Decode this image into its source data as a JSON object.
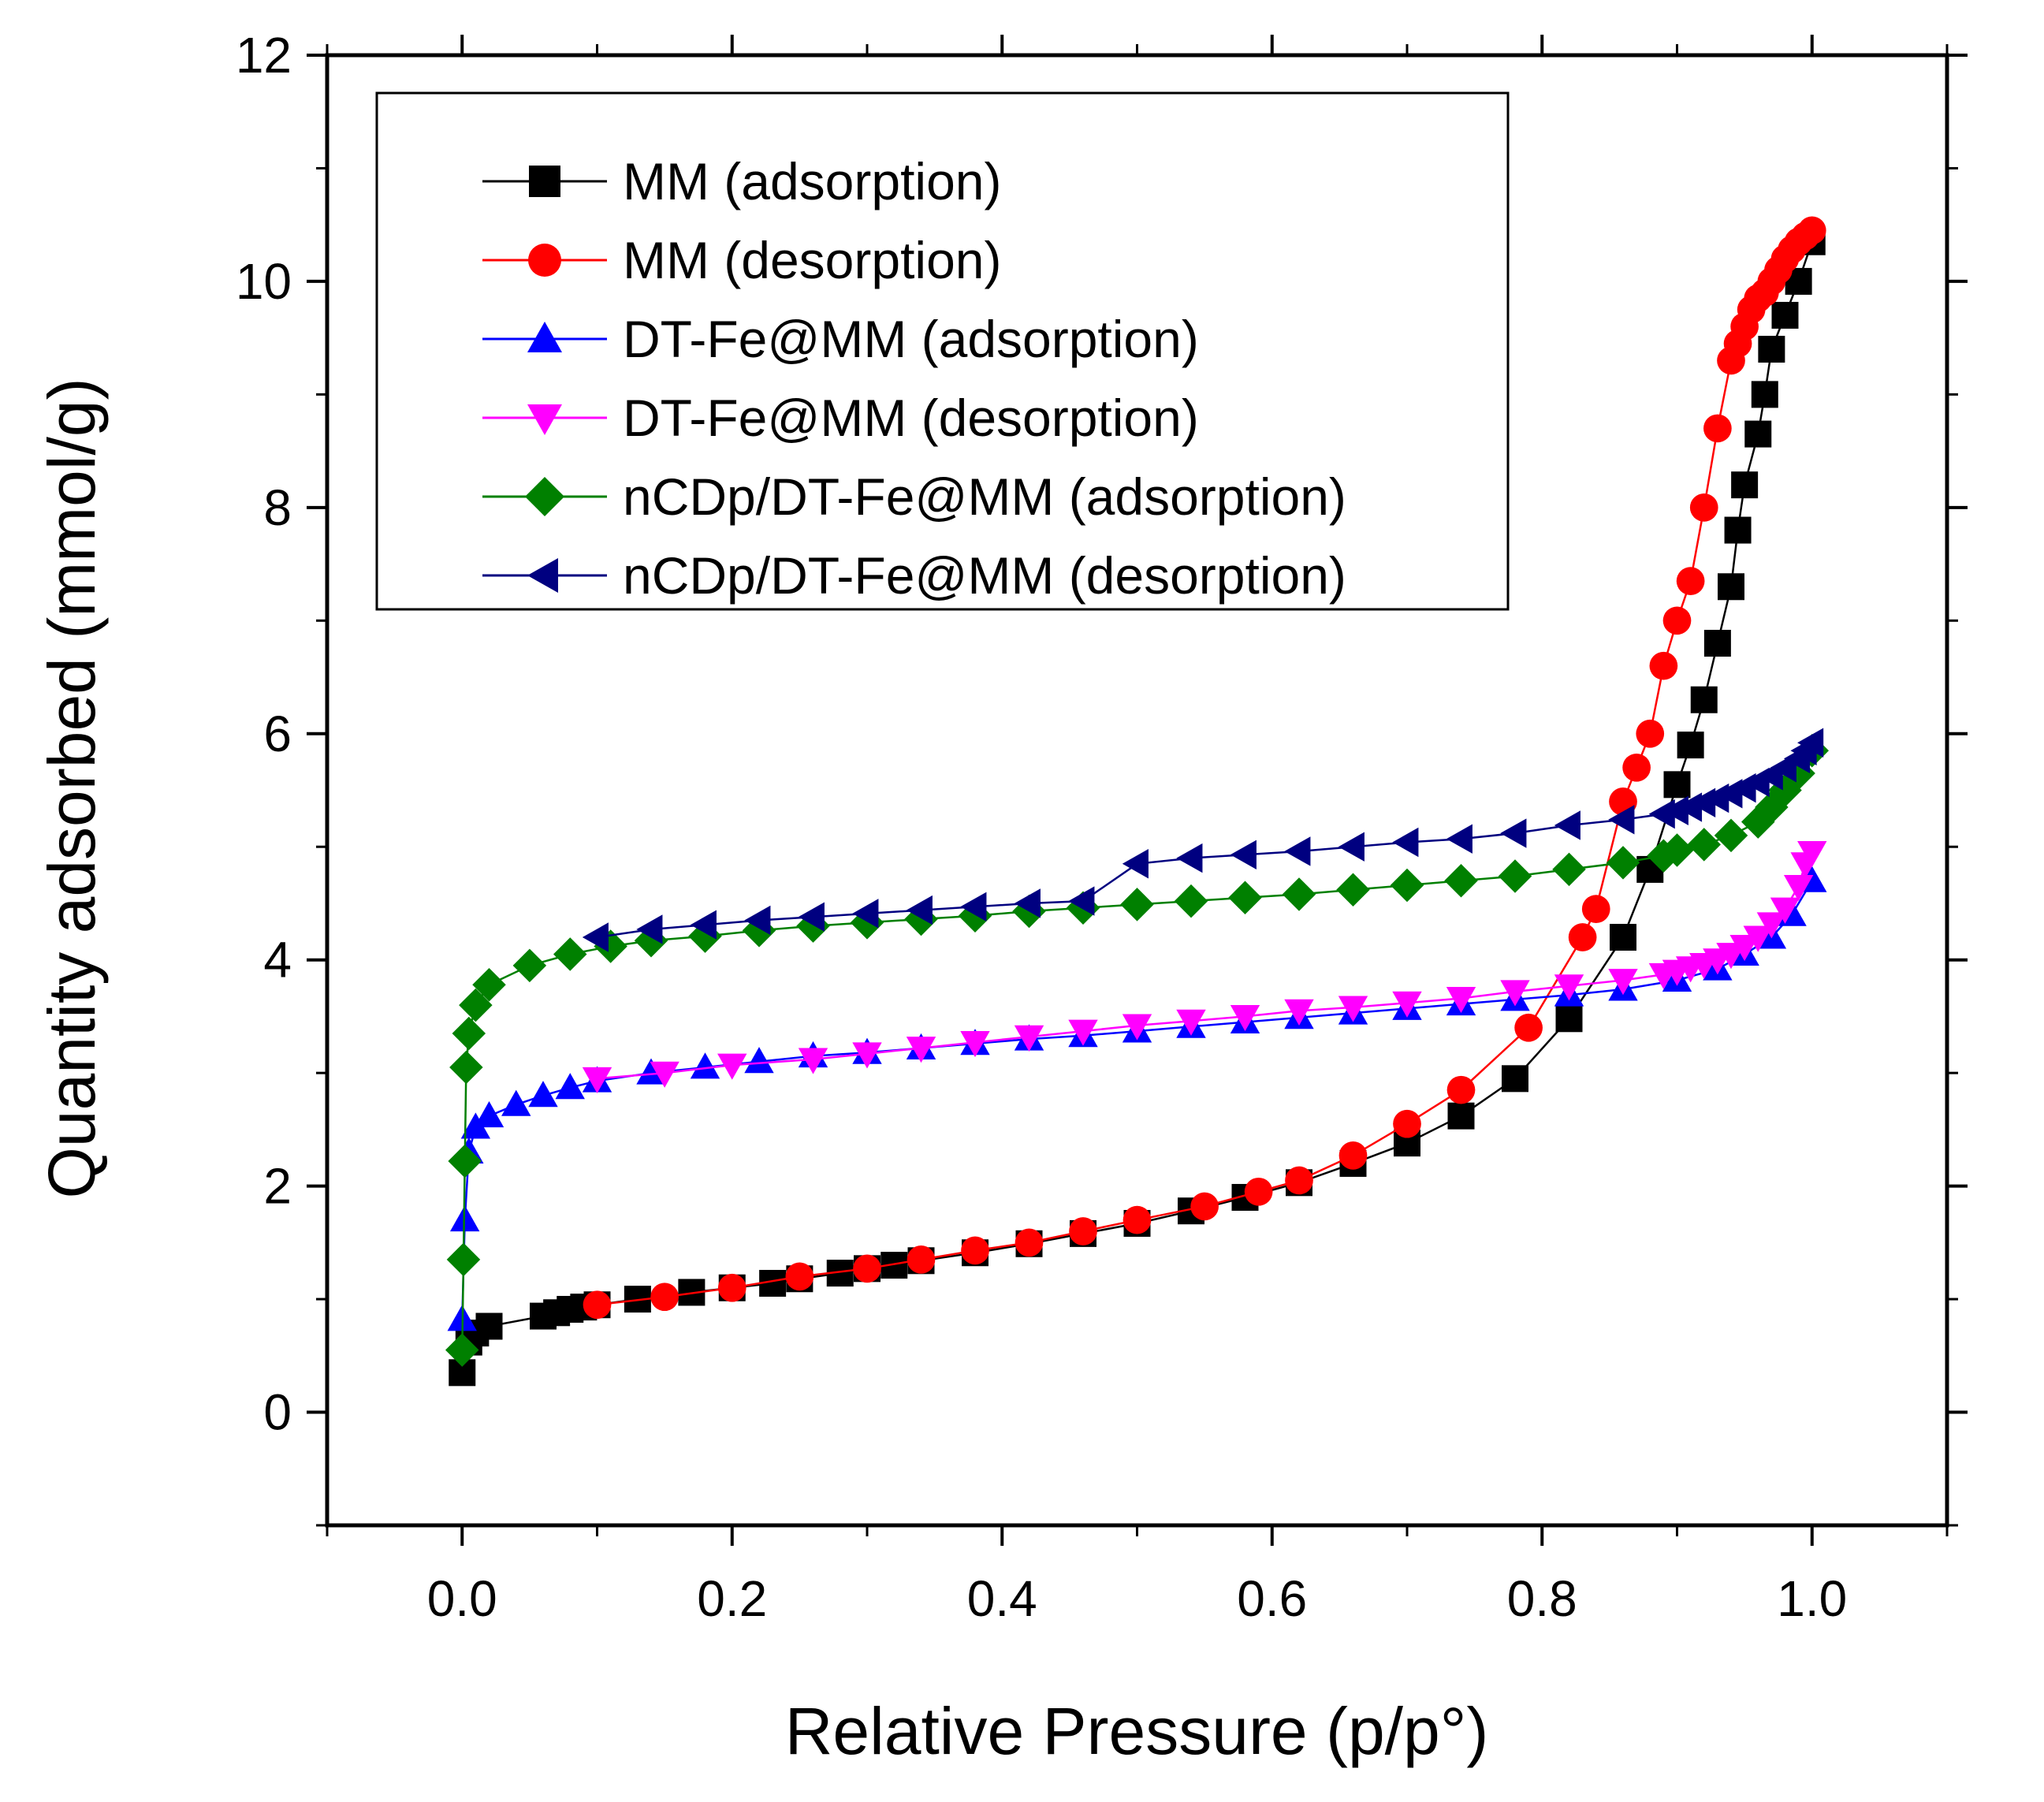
{
  "chart_data": {
    "type": "scatter",
    "xlabel": "Relative Pressure (p/p°)",
    "ylabel": "Quantity adsorbed (mmol/g)",
    "xlim": [
      -0.1,
      1.1
    ],
    "ylim": [
      -1,
      12
    ],
    "x_ticks": [
      "0.0",
      "0.2",
      "0.4",
      "0.6",
      "0.8",
      "1.0"
    ],
    "x_tick_values": [
      0.0,
      0.2,
      0.4,
      0.6,
      0.8,
      1.0
    ],
    "y_ticks": [
      "0",
      "2",
      "4",
      "6",
      "8",
      "10",
      "12"
    ],
    "y_tick_values": [
      0,
      2,
      4,
      6,
      8,
      10,
      12
    ],
    "legend_position": "top-left",
    "grid": false,
    "series": [
      {
        "name": "MM (adsorption)",
        "color": "#000000",
        "marker": "square",
        "x": [
          0.0,
          0.005,
          0.01,
          0.02,
          0.06,
          0.07,
          0.08,
          0.09,
          0.1,
          0.13,
          0.17,
          0.2,
          0.23,
          0.25,
          0.28,
          0.3,
          0.32,
          0.34,
          0.38,
          0.42,
          0.46,
          0.5,
          0.54,
          0.58,
          0.62,
          0.66,
          0.7,
          0.74,
          0.78,
          0.82,
          0.86,
          0.88,
          0.9,
          0.91,
          0.92,
          0.93,
          0.94,
          0.945,
          0.95,
          0.96,
          0.965,
          0.97,
          0.98,
          0.99,
          1.0
        ],
        "y": [
          0.35,
          0.62,
          0.7,
          0.76,
          0.85,
          0.88,
          0.91,
          0.93,
          0.95,
          1.0,
          1.06,
          1.1,
          1.14,
          1.18,
          1.23,
          1.27,
          1.3,
          1.34,
          1.41,
          1.49,
          1.58,
          1.67,
          1.78,
          1.9,
          2.03,
          2.2,
          2.38,
          2.62,
          2.95,
          3.48,
          4.2,
          4.8,
          5.55,
          5.9,
          6.3,
          6.8,
          7.3,
          7.8,
          8.2,
          8.65,
          9.0,
          9.4,
          9.7,
          10.0,
          10.35
        ]
      },
      {
        "name": "MM (desorption)",
        "color": "#ff0000",
        "marker": "circle",
        "x": [
          1.0,
          0.995,
          0.99,
          0.985,
          0.98,
          0.975,
          0.97,
          0.965,
          0.96,
          0.955,
          0.95,
          0.945,
          0.94,
          0.93,
          0.92,
          0.91,
          0.9,
          0.89,
          0.88,
          0.87,
          0.86,
          0.84,
          0.83,
          0.79,
          0.74,
          0.7,
          0.66,
          0.62,
          0.59,
          0.55,
          0.5,
          0.46,
          0.42,
          0.38,
          0.34,
          0.3,
          0.25,
          0.2,
          0.15,
          0.1
        ],
        "y": [
          10.45,
          10.4,
          10.35,
          10.28,
          10.2,
          10.1,
          10.0,
          9.9,
          9.85,
          9.75,
          9.6,
          9.45,
          9.3,
          8.7,
          8.0,
          7.35,
          7.0,
          6.6,
          6.0,
          5.7,
          5.4,
          4.45,
          4.2,
          3.4,
          2.85,
          2.55,
          2.27,
          2.05,
          1.95,
          1.82,
          1.7,
          1.6,
          1.5,
          1.43,
          1.35,
          1.27,
          1.2,
          1.1,
          1.02,
          0.95
        ]
      },
      {
        "name": "DT-Fe@MM (adsorption)",
        "color": "#0000ff",
        "marker": "triangle-up",
        "x": [
          0.0,
          0.002,
          0.005,
          0.01,
          0.02,
          0.04,
          0.06,
          0.08,
          0.1,
          0.14,
          0.18,
          0.22,
          0.26,
          0.3,
          0.34,
          0.38,
          0.42,
          0.46,
          0.5,
          0.54,
          0.58,
          0.62,
          0.66,
          0.7,
          0.74,
          0.78,
          0.82,
          0.86,
          0.9,
          0.93,
          0.95,
          0.97,
          0.985,
          1.0
        ],
        "y": [
          0.82,
          1.7,
          2.3,
          2.52,
          2.62,
          2.72,
          2.8,
          2.87,
          2.93,
          3.0,
          3.05,
          3.1,
          3.15,
          3.18,
          3.22,
          3.26,
          3.3,
          3.33,
          3.37,
          3.41,
          3.45,
          3.49,
          3.53,
          3.57,
          3.61,
          3.65,
          3.69,
          3.74,
          3.82,
          3.92,
          4.05,
          4.2,
          4.4,
          4.7
        ]
      },
      {
        "name": "DT-Fe@MM (desorption)",
        "color": "#ff00ff",
        "marker": "triangle-down",
        "x": [
          1.0,
          0.995,
          0.99,
          0.98,
          0.97,
          0.96,
          0.95,
          0.94,
          0.93,
          0.92,
          0.91,
          0.9,
          0.89,
          0.86,
          0.82,
          0.78,
          0.74,
          0.7,
          0.66,
          0.62,
          0.58,
          0.54,
          0.5,
          0.46,
          0.42,
          0.38,
          0.34,
          0.3,
          0.26,
          0.2,
          0.15,
          0.1
        ],
        "y": [
          4.95,
          4.85,
          4.65,
          4.45,
          4.32,
          4.2,
          4.12,
          4.05,
          4.0,
          3.96,
          3.93,
          3.9,
          3.87,
          3.82,
          3.77,
          3.72,
          3.66,
          3.62,
          3.58,
          3.55,
          3.5,
          3.46,
          3.42,
          3.37,
          3.32,
          3.27,
          3.22,
          3.17,
          3.12,
          3.07,
          3.0,
          2.95
        ]
      },
      {
        "name": "nCDp/DT-Fe@MM (adsorption)",
        "color": "#008000",
        "marker": "diamond",
        "x": [
          0.0,
          0.001,
          0.002,
          0.003,
          0.005,
          0.01,
          0.02,
          0.05,
          0.08,
          0.11,
          0.14,
          0.18,
          0.22,
          0.26,
          0.3,
          0.34,
          0.38,
          0.42,
          0.46,
          0.5,
          0.54,
          0.58,
          0.62,
          0.66,
          0.7,
          0.74,
          0.78,
          0.82,
          0.86,
          0.89,
          0.9,
          0.92,
          0.94,
          0.96,
          0.97,
          0.98,
          0.99,
          1.0
        ],
        "y": [
          0.55,
          1.35,
          2.22,
          3.05,
          3.35,
          3.6,
          3.78,
          3.95,
          4.05,
          4.12,
          4.17,
          4.21,
          4.26,
          4.3,
          4.33,
          4.36,
          4.39,
          4.43,
          4.46,
          4.49,
          4.52,
          4.55,
          4.58,
          4.62,
          4.66,
          4.7,
          4.74,
          4.8,
          4.86,
          4.92,
          4.97,
          5.02,
          5.1,
          5.22,
          5.35,
          5.5,
          5.65,
          5.85
        ]
      },
      {
        "name": "nCDp/DT-Fe@MM (desorption)",
        "color": "#000080",
        "marker": "triangle-left",
        "x": [
          1.0,
          0.995,
          0.99,
          0.98,
          0.97,
          0.96,
          0.95,
          0.94,
          0.93,
          0.92,
          0.91,
          0.9,
          0.89,
          0.86,
          0.82,
          0.78,
          0.74,
          0.7,
          0.66,
          0.62,
          0.58,
          0.54,
          0.5,
          0.46,
          0.42,
          0.38,
          0.34,
          0.3,
          0.26,
          0.22,
          0.18,
          0.14,
          0.1
        ],
        "y": [
          5.92,
          5.85,
          5.78,
          5.7,
          5.63,
          5.57,
          5.52,
          5.47,
          5.43,
          5.39,
          5.35,
          5.32,
          5.29,
          5.24,
          5.19,
          5.12,
          5.07,
          5.04,
          5.0,
          4.96,
          4.93,
          4.9,
          4.85,
          4.52,
          4.5,
          4.47,
          4.44,
          4.41,
          4.38,
          4.35,
          4.31,
          4.27,
          4.2
        ]
      }
    ]
  }
}
